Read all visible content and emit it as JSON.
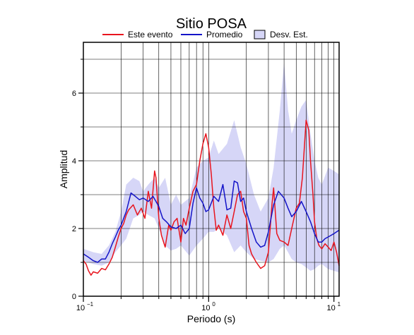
{
  "chart_data": {
    "type": "line",
    "title": "Sitio POSA",
    "xlabel": "Periodo (s)",
    "ylabel": "Amplitud",
    "x_scale": "log",
    "xlim": [
      0.1,
      11
    ],
    "ylim": [
      0,
      7.5
    ],
    "grid": true,
    "legend_placement": "top",
    "x_ticks": [
      {
        "label": "10",
        "exp": "−1",
        "value": 0.1
      },
      {
        "label": "10",
        "exp": "0",
        "value": 1
      },
      {
        "label": "10",
        "exp": "1",
        "value": 10
      }
    ],
    "y_ticks": [
      {
        "label": "0",
        "value": 0
      },
      {
        "label": "2",
        "value": 2
      },
      {
        "label": "4",
        "value": 4
      },
      {
        "label": "6",
        "value": 6
      }
    ],
    "legend": [
      {
        "label": "Este evento",
        "kind": "line",
        "color": "#e8141e"
      },
      {
        "label": "Promedio",
        "kind": "line",
        "color": "#1414c8"
      },
      {
        "label": "Desv. Est.",
        "kind": "box",
        "color": "#d6d6f7"
      }
    ],
    "series": [
      {
        "name": "Este evento",
        "color": "#e8141e",
        "x": [
          0.1,
          0.105,
          0.11,
          0.115,
          0.12,
          0.13,
          0.14,
          0.15,
          0.16,
          0.17,
          0.18,
          0.19,
          0.2,
          0.21,
          0.22,
          0.23,
          0.25,
          0.27,
          0.29,
          0.31,
          0.33,
          0.35,
          0.37,
          0.38,
          0.4,
          0.42,
          0.45,
          0.48,
          0.5,
          0.53,
          0.56,
          0.6,
          0.63,
          0.66,
          0.7,
          0.75,
          0.8,
          0.85,
          0.9,
          0.95,
          1.0,
          1.05,
          1.1,
          1.15,
          1.2,
          1.3,
          1.4,
          1.5,
          1.6,
          1.7,
          1.8,
          1.9,
          2.0,
          2.1,
          2.2,
          2.4,
          2.6,
          2.8,
          3.0,
          3.2,
          3.3,
          3.5,
          3.7,
          4.0,
          4.3,
          4.6,
          5.0,
          5.3,
          5.6,
          6.0,
          6.3,
          6.5,
          6.8,
          7.0,
          7.3,
          7.6,
          8.0,
          8.5,
          9.0,
          9.5,
          10.0,
          10.5,
          11.0
        ],
        "y": [
          1.05,
          0.95,
          0.75,
          0.62,
          0.72,
          0.68,
          0.82,
          0.78,
          0.95,
          1.15,
          1.45,
          1.75,
          2.0,
          2.15,
          2.4,
          2.55,
          2.7,
          2.4,
          2.6,
          2.3,
          3.1,
          2.6,
          3.7,
          3.5,
          2.3,
          1.8,
          1.45,
          2.1,
          1.95,
          2.2,
          2.3,
          1.6,
          2.3,
          2.1,
          2.6,
          3.1,
          3.3,
          4.0,
          4.5,
          4.8,
          4.4,
          3.6,
          2.6,
          1.95,
          2.1,
          1.8,
          2.4,
          2.0,
          2.5,
          3.0,
          3.1,
          2.5,
          2.3,
          1.5,
          1.25,
          1.0,
          0.82,
          0.9,
          1.3,
          2.7,
          3.2,
          1.85,
          1.65,
          1.6,
          1.5,
          2.0,
          2.6,
          2.75,
          3.5,
          5.2,
          4.9,
          4.0,
          3.0,
          2.2,
          1.7,
          1.5,
          1.4,
          1.55,
          1.45,
          1.35,
          1.6,
          1.3,
          0.9
        ]
      },
      {
        "name": "Promedio",
        "color": "#1414c8",
        "x": [
          0.1,
          0.11,
          0.12,
          0.13,
          0.14,
          0.15,
          0.16,
          0.17,
          0.18,
          0.19,
          0.2,
          0.22,
          0.24,
          0.26,
          0.28,
          0.3,
          0.33,
          0.36,
          0.4,
          0.43,
          0.46,
          0.5,
          0.55,
          0.6,
          0.65,
          0.7,
          0.75,
          0.8,
          0.85,
          0.9,
          0.95,
          1.0,
          1.1,
          1.2,
          1.3,
          1.4,
          1.5,
          1.6,
          1.7,
          1.8,
          1.9,
          2.0,
          2.2,
          2.4,
          2.6,
          2.8,
          3.0,
          3.3,
          3.6,
          4.0,
          4.3,
          4.6,
          5.0,
          5.5,
          6.0,
          6.5,
          7.0,
          7.5,
          8.0,
          8.5,
          9.0,
          9.5,
          10.0,
          10.5,
          11.0
        ],
        "y": [
          1.25,
          1.15,
          1.05,
          1.0,
          1.1,
          1.1,
          1.3,
          1.55,
          1.75,
          1.95,
          2.1,
          2.5,
          3.05,
          2.95,
          2.85,
          2.9,
          2.8,
          2.95,
          2.65,
          2.3,
          2.2,
          2.05,
          2.0,
          2.1,
          1.85,
          2.0,
          2.75,
          3.2,
          2.9,
          2.75,
          2.5,
          2.55,
          2.95,
          2.8,
          3.3,
          2.55,
          2.6,
          3.4,
          3.35,
          2.8,
          2.9,
          2.5,
          2.0,
          1.6,
          1.45,
          1.5,
          1.9,
          2.7,
          3.1,
          2.9,
          2.6,
          2.35,
          2.5,
          2.8,
          2.5,
          2.2,
          1.85,
          1.6,
          1.6,
          1.7,
          1.75,
          1.8,
          1.85,
          1.9,
          1.95
        ]
      }
    ],
    "band": {
      "name": "Desv. Est.",
      "color": "#d6d6f7",
      "x": [
        0.1,
        0.12,
        0.14,
        0.16,
        0.18,
        0.2,
        0.22,
        0.25,
        0.28,
        0.3,
        0.33,
        0.37,
        0.4,
        0.45,
        0.5,
        0.55,
        0.6,
        0.7,
        0.8,
        0.9,
        1.0,
        1.1,
        1.2,
        1.4,
        1.6,
        1.8,
        2.0,
        2.3,
        2.6,
        3.0,
        3.3,
        3.7,
        4.0,
        4.3,
        4.6,
        5.0,
        5.5,
        6.0,
        6.5,
        7.0,
        7.5,
        8.0,
        9.0,
        10.0,
        11.0
      ],
      "upper": [
        1.4,
        1.3,
        1.25,
        1.5,
        1.9,
        2.5,
        3.3,
        3.5,
        3.4,
        3.1,
        3.3,
        3.5,
        3.2,
        3.5,
        2.7,
        3.0,
        2.7,
        2.9,
        3.8,
        4.0,
        4.1,
        4.6,
        4.2,
        4.5,
        5.2,
        4.4,
        3.9,
        3.0,
        2.5,
        2.9,
        3.8,
        5.5,
        6.9,
        5.5,
        4.8,
        5.2,
        5.6,
        5.8,
        4.8,
        4.0,
        3.5,
        3.3,
        3.8,
        3.7,
        3.6
      ],
      "lower": [
        1.05,
        0.95,
        0.9,
        1.0,
        1.3,
        1.5,
        1.7,
        2.3,
        2.4,
        2.5,
        2.4,
        2.3,
        2.0,
        1.5,
        1.35,
        1.4,
        1.5,
        1.2,
        1.5,
        1.7,
        1.9,
        1.9,
        2.0,
        1.8,
        1.3,
        1.5,
        1.3,
        1.1,
        1.05,
        1.0,
        1.1,
        1.4,
        1.5,
        1.3,
        1.1,
        1.0,
        0.95,
        0.85,
        0.75,
        0.8,
        0.9,
        0.95,
        0.8,
        0.75,
        0.7
      ]
    }
  }
}
